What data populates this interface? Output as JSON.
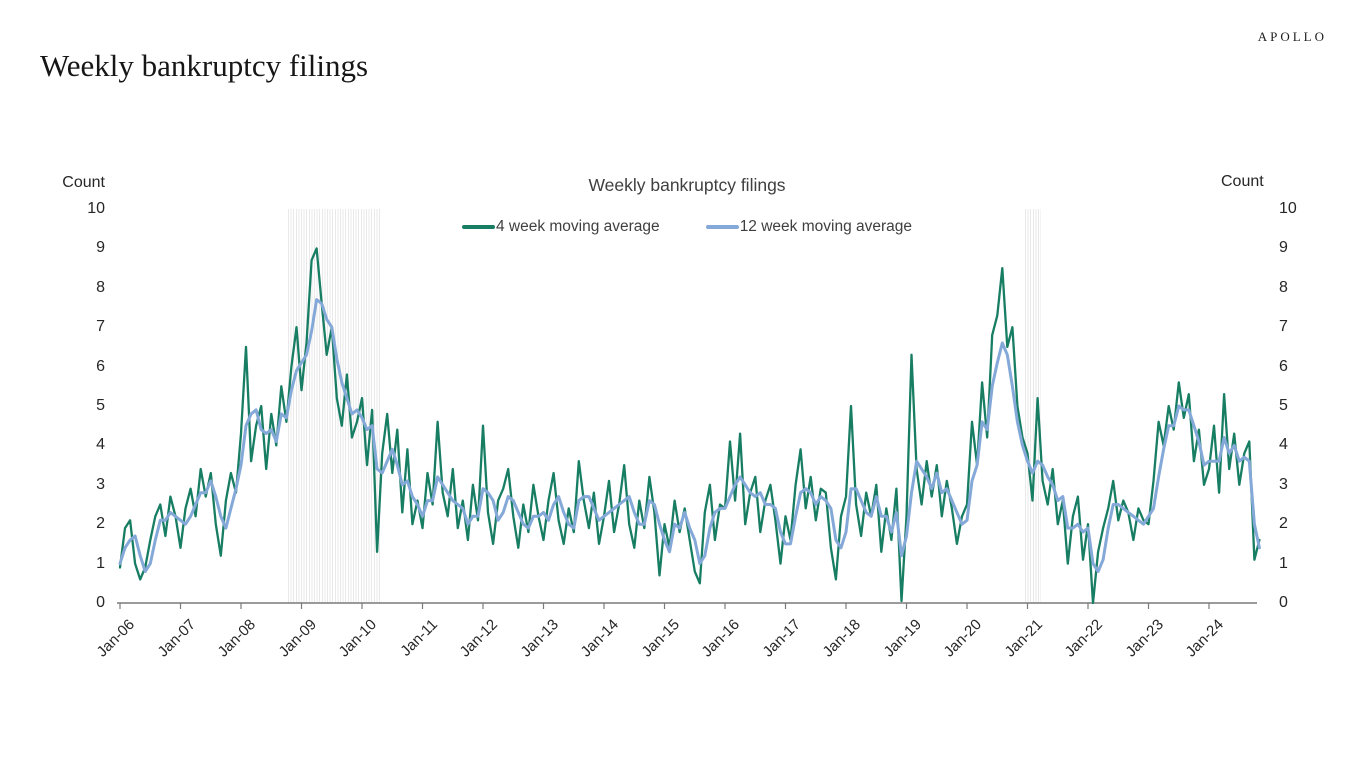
{
  "page": {
    "brand": "APOLLO",
    "title": "Weekly bankruptcy filings"
  },
  "chart": {
    "title": "Weekly bankruptcy filings",
    "axis_label_left": "Count",
    "axis_label_right": "Count"
  },
  "chart_data": {
    "type": "line",
    "title": "Weekly bankruptcy filings",
    "xlabel": "",
    "ylabel": "Count",
    "ylabel_right": "Count",
    "ylim": [
      0,
      10
    ],
    "yticks": [
      0,
      1,
      2,
      3,
      4,
      5,
      6,
      7,
      8,
      9,
      10
    ],
    "xticks": [
      "Jan-06",
      "Jan-07",
      "Jan-08",
      "Jan-09",
      "Jan-10",
      "Jan-11",
      "Jan-12",
      "Jan-13",
      "Jan-14",
      "Jan-15",
      "Jan-16",
      "Jan-17",
      "Jan-18",
      "Jan-19",
      "Jan-20",
      "Jan-21",
      "Jan-22",
      "Jan-23",
      "Jan-24"
    ],
    "x_start_year": 2006,
    "x_step_months": 1,
    "grid": false,
    "legend_position": "top-center",
    "axis_color": "#7a7a7a",
    "shaded_bands_x": [
      {
        "name": "recession-shading-2008-2010",
        "from": 2008.78,
        "to": 2010.32
      },
      {
        "name": "shading-2020-2021",
        "from": 2020.95,
        "to": 2021.22
      }
    ],
    "series": [
      {
        "name": "4 week moving average",
        "color": "#177d63",
        "line_width": 2.3,
        "values": [
          0.9,
          1.9,
          2.1,
          1.0,
          0.6,
          0.9,
          1.6,
          2.2,
          2.5,
          1.7,
          2.7,
          2.2,
          1.4,
          2.4,
          2.9,
          2.2,
          3.4,
          2.7,
          3.3,
          2.0,
          1.2,
          2.6,
          3.3,
          2.8,
          4.3,
          6.5,
          3.6,
          4.5,
          5.0,
          3.4,
          4.8,
          4.0,
          5.5,
          4.6,
          6.0,
          7.0,
          5.4,
          6.6,
          8.7,
          9.0,
          7.6,
          6.3,
          7.0,
          5.2,
          4.5,
          5.8,
          4.2,
          4.6,
          5.2,
          3.5,
          4.9,
          1.3,
          3.8,
          4.8,
          3.3,
          4.4,
          2.3,
          3.9,
          2.0,
          2.6,
          1.9,
          3.3,
          2.5,
          4.6,
          2.8,
          2.2,
          3.4,
          1.9,
          2.6,
          1.6,
          3.0,
          2.1,
          4.5,
          2.3,
          1.5,
          2.6,
          2.9,
          3.4,
          2.2,
          1.4,
          2.5,
          1.8,
          3.0,
          2.2,
          1.6,
          2.6,
          3.3,
          2.1,
          1.5,
          2.4,
          1.8,
          3.6,
          2.6,
          1.9,
          2.8,
          1.5,
          2.2,
          3.1,
          1.8,
          2.5,
          3.5,
          2.0,
          1.4,
          2.6,
          1.9,
          3.2,
          2.3,
          0.7,
          2.0,
          1.4,
          2.6,
          1.8,
          2.4,
          1.6,
          0.8,
          0.5,
          2.3,
          3.0,
          1.6,
          2.5,
          2.4,
          4.1,
          2.6,
          4.3,
          2.0,
          2.8,
          3.2,
          1.8,
          2.6,
          3.0,
          2.1,
          1.0,
          2.2,
          1.6,
          3.0,
          3.9,
          2.4,
          3.2,
          2.1,
          2.9,
          2.8,
          1.4,
          0.6,
          2.2,
          2.7,
          5.0,
          2.5,
          1.7,
          2.8,
          2.2,
          3.0,
          1.3,
          2.4,
          1.6,
          2.9,
          0.05,
          2.2,
          6.3,
          3.4,
          2.5,
          3.6,
          2.7,
          3.5,
          2.2,
          3.1,
          2.4,
          1.5,
          2.2,
          2.5,
          4.6,
          3.5,
          5.6,
          4.2,
          6.8,
          7.3,
          8.5,
          6.5,
          7.0,
          5.0,
          4.2,
          3.8,
          2.6,
          5.2,
          3.1,
          2.5,
          3.4,
          2.0,
          2.6,
          1.0,
          2.2,
          2.7,
          1.1,
          2.0,
          0.0,
          1.3,
          1.9,
          2.4,
          3.1,
          2.1,
          2.6,
          2.3,
          1.6,
          2.4,
          2.1,
          2.0,
          3.1,
          4.6,
          4.0,
          5.0,
          4.4,
          5.6,
          4.7,
          5.3,
          3.6,
          4.4,
          3.0,
          3.4,
          4.5,
          2.8,
          5.3,
          3.4,
          4.3,
          3.0,
          3.8,
          4.1,
          1.1,
          1.6
        ]
      },
      {
        "name": "12 week moving average",
        "color": "#84a9d8",
        "line_width": 3,
        "values": [
          1.0,
          1.4,
          1.6,
          1.7,
          1.2,
          0.8,
          1.0,
          1.6,
          2.1,
          2.1,
          2.3,
          2.2,
          2.1,
          2.0,
          2.2,
          2.5,
          2.8,
          2.8,
          3.1,
          2.7,
          2.2,
          1.9,
          2.4,
          2.9,
          3.5,
          4.5,
          4.8,
          4.9,
          4.4,
          4.3,
          4.4,
          4.1,
          4.8,
          4.7,
          5.4,
          5.9,
          6.1,
          6.3,
          6.9,
          7.7,
          7.6,
          7.2,
          7.0,
          6.2,
          5.6,
          5.2,
          4.8,
          4.9,
          4.7,
          4.4,
          4.5,
          3.4,
          3.3,
          3.6,
          3.9,
          3.5,
          3.0,
          3.1,
          2.7,
          2.5,
          2.2,
          2.6,
          2.6,
          3.2,
          3.0,
          2.8,
          2.6,
          2.5,
          2.4,
          2.0,
          2.2,
          2.2,
          2.9,
          2.8,
          2.6,
          2.1,
          2.3,
          2.7,
          2.6,
          2.3,
          2.0,
          1.9,
          2.2,
          2.2,
          2.3,
          2.1,
          2.5,
          2.7,
          2.3,
          2.0,
          1.9,
          2.6,
          2.7,
          2.7,
          2.4,
          2.1,
          2.2,
          2.3,
          2.4,
          2.5,
          2.6,
          2.7,
          2.3,
          2.0,
          2.0,
          2.6,
          2.5,
          2.0,
          1.6,
          1.3,
          2.0,
          1.9,
          2.3,
          1.9,
          1.6,
          1.0,
          1.2,
          1.9,
          2.3,
          2.4,
          2.4,
          2.7,
          3.0,
          3.2,
          3.0,
          2.8,
          2.7,
          2.8,
          2.5,
          2.5,
          2.4,
          1.8,
          1.5,
          1.5,
          2.2,
          2.8,
          2.9,
          2.8,
          2.5,
          2.7,
          2.6,
          2.4,
          1.6,
          1.4,
          1.8,
          2.9,
          2.9,
          2.6,
          2.3,
          2.2,
          2.7,
          2.2,
          2.2,
          1.8,
          2.3,
          1.2,
          1.7,
          2.8,
          3.6,
          3.4,
          3.2,
          2.9,
          3.3,
          2.8,
          2.9,
          2.6,
          2.3,
          2.0,
          2.1,
          3.1,
          3.5,
          4.6,
          4.4,
          5.5,
          6.1,
          6.6,
          6.3,
          5.5,
          4.6,
          4.0,
          3.6,
          3.3,
          3.6,
          3.5,
          3.2,
          3.0,
          2.6,
          2.7,
          1.9,
          1.9,
          2.0,
          1.8,
          1.9,
          1.0,
          0.8,
          1.1,
          1.9,
          2.5,
          2.5,
          2.4,
          2.3,
          2.2,
          2.1,
          2.0,
          2.2,
          2.4,
          3.2,
          3.9,
          4.5,
          4.5,
          5.0,
          4.9,
          4.9,
          4.5,
          4.1,
          3.5,
          3.6,
          3.6,
          3.6,
          4.2,
          3.8,
          4.0,
          3.6,
          3.7,
          3.6,
          2.0,
          1.4
        ]
      }
    ]
  }
}
